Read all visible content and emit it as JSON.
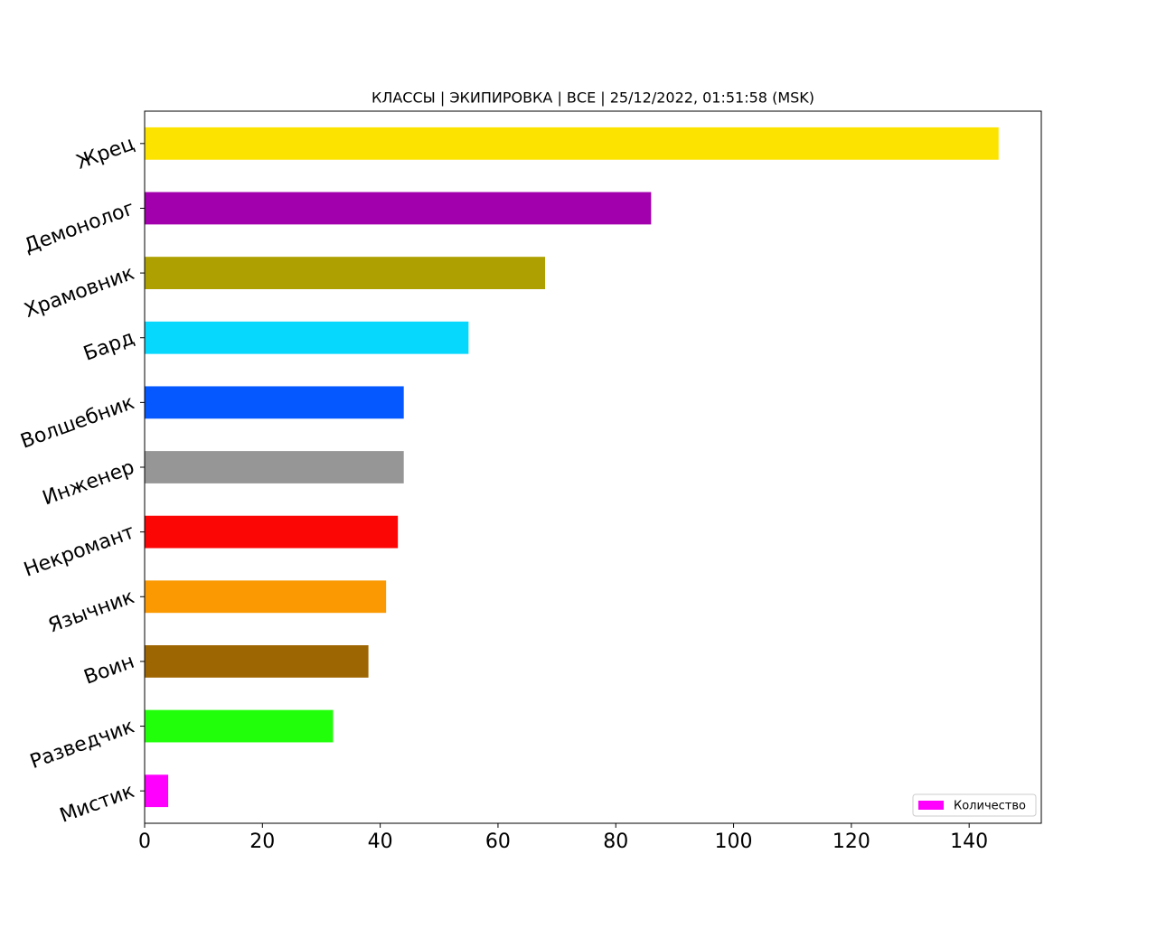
{
  "chart_data": {
    "type": "barh",
    "title": "КЛАССЫ | ЭКИПИРОВКА | ВСЕ | 25/12/2022, 01:51:58 (MSK)",
    "categories": [
      "Жрец",
      "Демонолог",
      "Храмовник",
      "Бард",
      "Волшебник",
      "Инженер",
      "Некромант",
      "Язычник",
      "Воин",
      "Разведчик",
      "Мистик"
    ],
    "series": [
      {
        "name": "Количество",
        "color": "#ff00ff",
        "colors": [
          "#fce300",
          "#a300ad",
          "#ada000",
          "#05d8fc",
          "#0558ff",
          "#969696",
          "#fc0505",
          "#fa9902",
          "#9e6602",
          "#22ff0a",
          "#ff00ff"
        ],
        "values": [
          145,
          86,
          68,
          55,
          44,
          44,
          43,
          41,
          38,
          32,
          4
        ]
      }
    ],
    "xlim": [
      0,
      152.25
    ],
    "xticks": [
      0,
      20,
      40,
      60,
      80,
      100,
      120,
      140
    ],
    "legend": "lower right"
  }
}
